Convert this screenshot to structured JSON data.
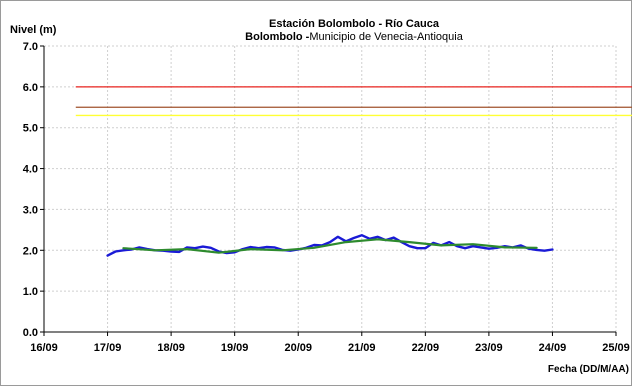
{
  "chart_data": {
    "type": "line",
    "title": "Estación Bolombolo - Río Cauca",
    "subtitle_bold": "Bolombolo -",
    "subtitle_rest": "Municipio de Venecia-Antioquia",
    "ylabel": "Nivel (m)",
    "xlabel": "Fecha (DD/M/AA)",
    "ylim": [
      0,
      7
    ],
    "yticks": [
      "0.0",
      "1.0",
      "2.0",
      "3.0",
      "4.0",
      "5.0",
      "6.0",
      "7.0"
    ],
    "xlim": [
      "16/09",
      "25/09"
    ],
    "xticks": [
      "16/09",
      "17/09",
      "18/09",
      "19/09",
      "20/09",
      "21/09",
      "22/09",
      "23/09",
      "24/09",
      "25/09"
    ],
    "grid": true,
    "legend": "none",
    "thresholds": [
      {
        "value": 6.0,
        "color": "#e8231e",
        "x_range": [
          "16/09 12:00",
          "25/09 18:00"
        ]
      },
      {
        "value": 5.5,
        "color": "#a0522d",
        "x_range": [
          "16/09 12:00",
          "25/09 18:00"
        ]
      },
      {
        "value": 5.3,
        "color": "#ffff33",
        "x_range": [
          "16/09 12:00",
          "25/09 18:00"
        ]
      }
    ],
    "series": [
      {
        "color": "#1a1ad6",
        "x": [
          "17/09 00:00",
          "17/09 03:00",
          "17/09 06:00",
          "17/09 09:00",
          "17/09 12:00",
          "17/09 15:00",
          "17/09 18:00",
          "17/09 21:00",
          "18/09 00:00",
          "18/09 03:00",
          "18/09 06:00",
          "18/09 09:00",
          "18/09 12:00",
          "18/09 15:00",
          "18/09 18:00",
          "18/09 21:00",
          "19/09 00:00",
          "19/09 03:00",
          "19/09 06:00",
          "19/09 09:00",
          "19/09 12:00",
          "19/09 15:00",
          "19/09 18:00",
          "19/09 21:00",
          "20/09 00:00",
          "20/09 03:00",
          "20/09 06:00",
          "20/09 09:00",
          "20/09 12:00",
          "20/09 15:00",
          "20/09 18:00",
          "20/09 21:00",
          "21/09 00:00",
          "21/09 03:00",
          "21/09 06:00",
          "21/09 09:00",
          "21/09 12:00",
          "21/09 15:00",
          "21/09 18:00",
          "21/09 21:00",
          "22/09 00:00",
          "22/09 03:00",
          "22/09 06:00",
          "22/09 09:00",
          "22/09 12:00",
          "22/09 15:00",
          "22/09 18:00",
          "22/09 21:00",
          "23/09 00:00",
          "23/09 03:00",
          "23/09 06:00",
          "23/09 09:00",
          "23/09 12:00",
          "23/09 15:00",
          "23/09 18:00",
          "23/09 21:00",
          "24/09 00:00"
        ],
        "values": [
          1.87,
          1.97,
          2.0,
          2.02,
          2.07,
          2.03,
          2.0,
          1.99,
          1.97,
          1.96,
          2.07,
          2.05,
          2.09,
          2.06,
          1.97,
          1.93,
          1.95,
          2.03,
          2.08,
          2.05,
          2.08,
          2.07,
          2.01,
          1.99,
          2.02,
          2.06,
          2.13,
          2.12,
          2.2,
          2.33,
          2.22,
          2.3,
          2.37,
          2.28,
          2.33,
          2.25,
          2.31,
          2.2,
          2.1,
          2.05,
          2.05,
          2.18,
          2.12,
          2.2,
          2.1,
          2.05,
          2.1,
          2.07,
          2.04,
          2.06,
          2.1,
          2.07,
          2.12,
          2.04,
          2.01,
          1.99,
          2.02
        ]
      },
      {
        "color": "#2e8b2e",
        "x": [
          "17/09 06:00",
          "17/09 18:00",
          "18/09 06:00",
          "18/09 18:00",
          "19/09 06:00",
          "19/09 18:00",
          "20/09 06:00",
          "20/09 18:00",
          "21/09 06:00",
          "21/09 18:00",
          "22/09 06:00",
          "22/09 18:00",
          "23/09 06:00",
          "23/09 18:00"
        ],
        "values": [
          2.05,
          2.0,
          2.03,
          1.94,
          2.03,
          2.0,
          2.06,
          2.2,
          2.27,
          2.2,
          2.12,
          2.15,
          2.07,
          2.06
        ]
      }
    ]
  }
}
